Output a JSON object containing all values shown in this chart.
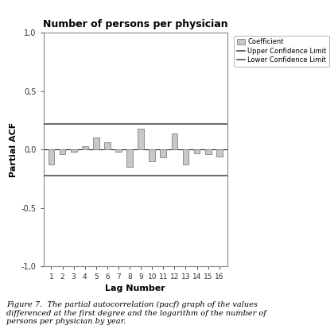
{
  "title": "Number of persons per physician",
  "xlabel": "Lag Number",
  "ylabel": "Partial ACF",
  "ylim": [
    -1.0,
    1.0
  ],
  "yticks": [
    -1.0,
    -0.5,
    0.0,
    0.5,
    1.0
  ],
  "ytick_labels": [
    "-1,0",
    "-0,5",
    "0,0",
    "0,5",
    "1,0"
  ],
  "lags": [
    1,
    2,
    3,
    4,
    5,
    6,
    7,
    8,
    9,
    10,
    11,
    12,
    13,
    14,
    15,
    16
  ],
  "pacf_values": [
    -0.13,
    -0.04,
    -0.02,
    0.03,
    0.1,
    0.06,
    -0.02,
    -0.15,
    0.18,
    -0.1,
    -0.07,
    0.14,
    -0.13,
    -0.03,
    -0.04,
    -0.06
  ],
  "upper_ci": 0.22,
  "lower_ci": -0.22,
  "bar_color": "#c8c8c8",
  "bar_edgecolor": "#808080",
  "ci_color": "#505050",
  "zero_line_color": "#000000",
  "spine_color": "#888888",
  "legend_labels": [
    "Coefficient",
    "Upper Confidence Limit",
    "Lower Confidence Limit"
  ],
  "background_color": "#ffffff",
  "figure_caption": "Figure 7.  The partial autocorrelation (pacf) graph of the values\ndifferenced at the first degree and the logarithm of the number of\npersons per physician by year."
}
